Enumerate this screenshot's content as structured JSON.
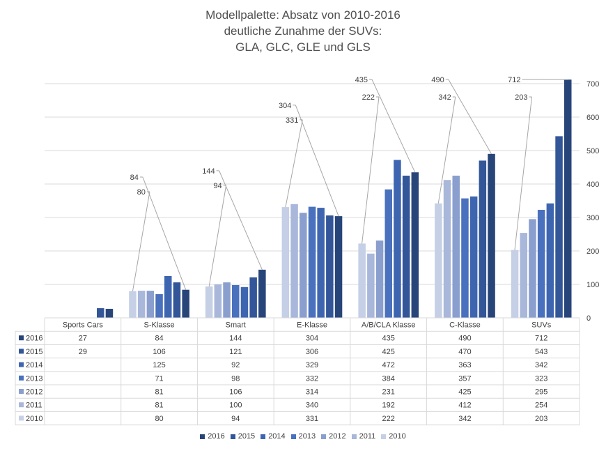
{
  "chart_data": {
    "type": "bar",
    "title_lines": [
      "Modellpalette: Absatz von 2010-2016",
      "deutliche Zunahme der SUVs:",
      "GLA, GLC, GLE und GLS"
    ],
    "categories": [
      "Sports Cars",
      "S-Klasse",
      "Smart",
      "E-Klasse",
      "A/B/CLA Klasse",
      "C-Klasse",
      "SUVs"
    ],
    "y_axis": {
      "side": "right",
      "min": 0,
      "max": 700,
      "step": 100,
      "ticks": [
        "0",
        "100",
        "200",
        "300",
        "400",
        "500",
        "600",
        "700"
      ]
    },
    "grid": true,
    "legend_position": "bottom",
    "series": [
      {
        "name": "2010",
        "color": "#c5cfe6",
        "values": [
          null,
          80,
          94,
          331,
          222,
          342,
          203
        ]
      },
      {
        "name": "2011",
        "color": "#a8b7da",
        "values": [
          null,
          81,
          100,
          340,
          192,
          412,
          254
        ]
      },
      {
        "name": "2012",
        "color": "#8a9fce",
        "values": [
          null,
          81,
          106,
          314,
          231,
          425,
          295
        ]
      },
      {
        "name": "2013",
        "color": "#4a71bd",
        "values": [
          null,
          71,
          98,
          332,
          384,
          357,
          323
        ]
      },
      {
        "name": "2014",
        "color": "#3e65b0",
        "values": [
          null,
          125,
          92,
          329,
          472,
          363,
          342
        ]
      },
      {
        "name": "2015",
        "color": "#325698",
        "values": [
          29,
          106,
          121,
          306,
          425,
          470,
          543
        ]
      },
      {
        "name": "2016",
        "color": "#28457a",
        "values": [
          27,
          84,
          144,
          304,
          435,
          490,
          712
        ]
      }
    ],
    "callouts": [
      {
        "category": "S-Klasse",
        "series": "2010",
        "label": "80"
      },
      {
        "category": "S-Klasse",
        "series": "2016",
        "label": "84"
      },
      {
        "category": "Smart",
        "series": "2010",
        "label": "94"
      },
      {
        "category": "Smart",
        "series": "2016",
        "label": "144"
      },
      {
        "category": "E-Klasse",
        "series": "2010",
        "label": "331"
      },
      {
        "category": "E-Klasse",
        "series": "2016",
        "label": "304"
      },
      {
        "category": "A/B/CLA Klasse",
        "series": "2010",
        "label": "222"
      },
      {
        "category": "A/B/CLA Klasse",
        "series": "2016",
        "label": "435"
      },
      {
        "category": "C-Klasse",
        "series": "2010",
        "label": "342"
      },
      {
        "category": "C-Klasse",
        "series": "2016",
        "label": "490"
      },
      {
        "category": "SUVs",
        "series": "2010",
        "label": "203"
      },
      {
        "category": "SUVs",
        "series": "2016",
        "label": "712"
      }
    ],
    "data_table": {
      "row_order": [
        "2016",
        "2015",
        "2014",
        "2013",
        "2012",
        "2011",
        "2010"
      ],
      "rows": {
        "2016": [
          "27",
          "84",
          "144",
          "304",
          "435",
          "490",
          "712"
        ],
        "2015": [
          "29",
          "106",
          "121",
          "306",
          "425",
          "470",
          "543"
        ],
        "2014": [
          "",
          "125",
          "92",
          "329",
          "472",
          "363",
          "342"
        ],
        "2013": [
          "",
          "71",
          "98",
          "332",
          "384",
          "357",
          "323"
        ],
        "2012": [
          "",
          "81",
          "106",
          "314",
          "231",
          "425",
          "295"
        ],
        "2011": [
          "",
          "81",
          "100",
          "340",
          "192",
          "412",
          "254"
        ],
        "2010": [
          "",
          "80",
          "94",
          "331",
          "222",
          "342",
          "203"
        ]
      }
    },
    "legend_order": [
      "2016",
      "2015",
      "2014",
      "2013",
      "2012",
      "2011",
      "2010"
    ]
  }
}
